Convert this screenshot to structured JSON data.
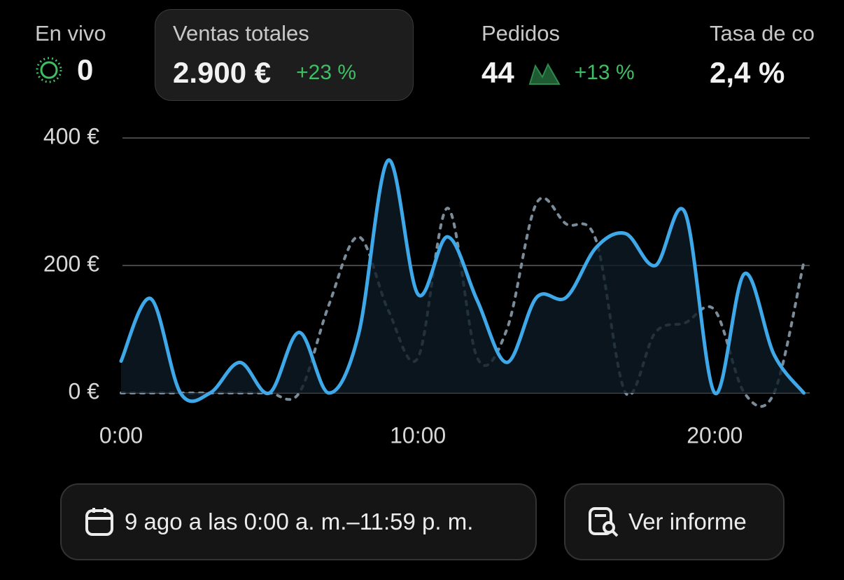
{
  "metrics": [
    {
      "label": "En vivo",
      "value": "0"
    },
    {
      "label": "Ventas totales",
      "value": "2.900 €",
      "change": "+23 %"
    },
    {
      "label": "Pedidos",
      "value": "44",
      "change": "+13 %"
    },
    {
      "label": "Tasa de co",
      "value": "2,4 %"
    }
  ],
  "chart_data": {
    "type": "line",
    "x": [
      0,
      1,
      2,
      3,
      4,
      5,
      6,
      7,
      8,
      9,
      10,
      11,
      12,
      13,
      14,
      15,
      16,
      17,
      18,
      19,
      20,
      21,
      22,
      23
    ],
    "series": [
      {
        "color": "#3ea8e8",
        "style": "solid",
        "values": [
          50,
          148,
          0,
          0,
          48,
          0,
          95,
          0,
          92,
          365,
          155,
          245,
          145,
          48,
          150,
          150,
          228,
          250,
          200,
          283,
          0,
          187,
          60,
          0
        ]
      },
      {
        "color": "#7a8c99",
        "style": "dashed",
        "values": [
          0,
          0,
          0,
          0,
          0,
          0,
          0,
          138,
          245,
          130,
          55,
          290,
          55,
          100,
          298,
          265,
          240,
          0,
          95,
          110,
          130,
          0,
          0,
          205
        ]
      }
    ],
    "xlim": [
      0,
      23.2
    ],
    "xticks": [
      {
        "value": 0,
        "label": "0:00"
      },
      {
        "value": 10,
        "label": "10:00"
      },
      {
        "value": 20,
        "label": "20:00"
      }
    ],
    "ylim": [
      0,
      400
    ],
    "yticks": [
      {
        "value": 0,
        "label": "0 €"
      },
      {
        "value": 200,
        "label": "200 €"
      },
      {
        "value": 400,
        "label": "400 €"
      }
    ],
    "grid": true
  },
  "footer": {
    "date_range": "9 ago a las 0:00 a. m.–11:59 p. m.",
    "report_button": "Ver informe"
  }
}
